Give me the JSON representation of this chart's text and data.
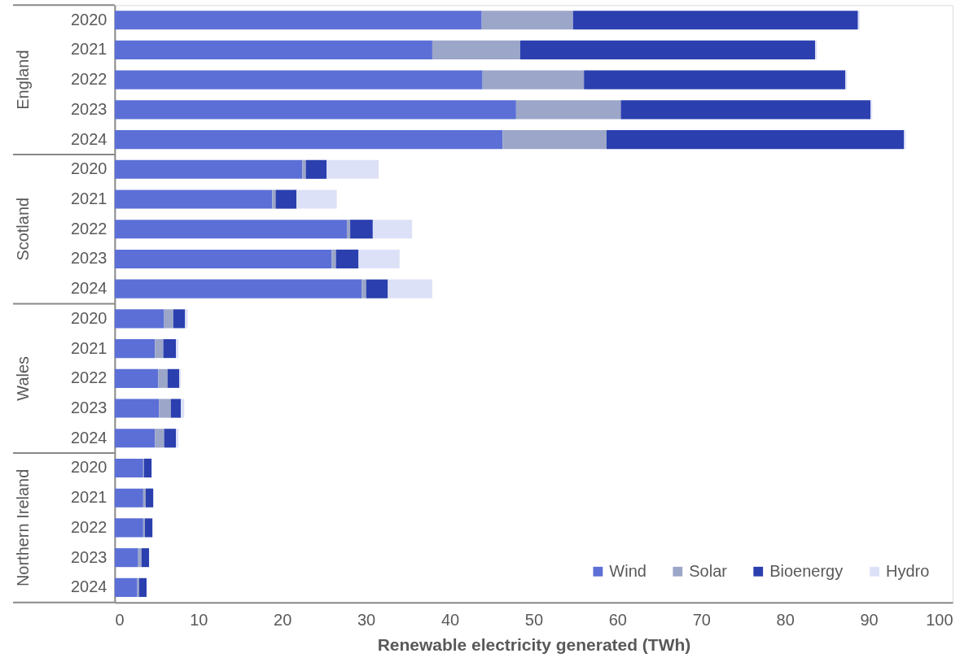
{
  "chart_data": {
    "type": "bar",
    "orientation": "horizontal",
    "stacked": true,
    "xlabel": "Renewable electricity generated (TWh)",
    "categories": [
      "2020",
      "2021",
      "2022",
      "2023",
      "2024",
      "2020",
      "2021",
      "2022",
      "2023",
      "2024",
      "2020",
      "2021",
      "2022",
      "2023",
      "2024",
      "2020",
      "2021",
      "2022",
      "2023",
      "2024"
    ],
    "annotations": [
      "England",
      "Scotland",
      "Wales",
      "Northern Ireland"
    ],
    "series": [
      {
        "name": "Wind",
        "color": "#5c6fd6",
        "values": [
          43.8,
          37.9,
          43.9,
          47.9,
          46.3,
          22.4,
          18.8,
          27.7,
          25.9,
          29.5,
          5.9,
          4.8,
          5.2,
          5.3,
          4.8,
          3.4,
          3.4,
          3.4,
          2.8,
          2.7
        ]
      },
      {
        "name": "Solar",
        "color": "#9ba6c8",
        "values": [
          10.9,
          10.5,
          12.1,
          12.5,
          12.4,
          0.4,
          0.4,
          0.4,
          0.5,
          0.5,
          1.1,
          1.0,
          1.1,
          1.4,
          1.1,
          0.1,
          0.3,
          0.2,
          0.4,
          0.2
        ]
      },
      {
        "name": "Bioenergy",
        "color": "#2b3faf",
        "values": [
          34.0,
          35.2,
          31.2,
          29.8,
          35.5,
          2.5,
          2.5,
          2.7,
          2.7,
          2.6,
          1.4,
          1.5,
          1.4,
          1.2,
          1.4,
          0.9,
          0.9,
          0.9,
          0.9,
          0.9
        ]
      },
      {
        "name": "Hydro",
        "color": "#dde1f7",
        "values": [
          0.2,
          0.2,
          0.2,
          0.2,
          0.2,
          6.2,
          4.8,
          4.7,
          4.9,
          5.3,
          0.3,
          0.3,
          0.2,
          0.4,
          0.3,
          0,
          0,
          0,
          0,
          0
        ]
      }
    ],
    "xlim": [
      0,
      100
    ],
    "xticks": [
      0,
      10,
      20,
      30,
      40,
      50,
      60,
      70,
      80,
      90,
      100
    ],
    "grid": false,
    "legend": "bottom right"
  }
}
